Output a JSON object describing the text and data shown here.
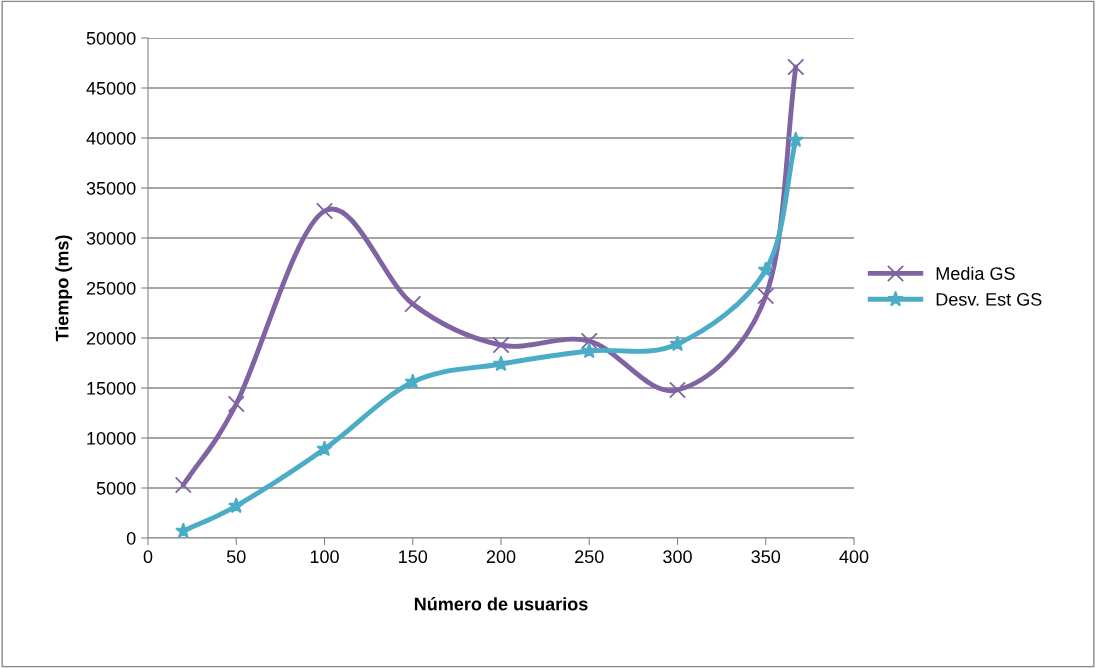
{
  "chart_data": {
    "type": "line",
    "xlabel": "Número de usuarios",
    "ylabel": "Tiempo (ms)",
    "x": [
      20,
      50,
      100,
      150,
      200,
      250,
      300,
      350,
      367
    ],
    "series": [
      {
        "name": "Media GS",
        "color": "#7f63a2",
        "marker": "cross",
        "values": [
          5300,
          13400,
          32700,
          23400,
          19300,
          19700,
          14800,
          24200,
          47100
        ]
      },
      {
        "name": "Desv. Est GS",
        "color": "#4bacc6",
        "marker": "star",
        "values": [
          700,
          3200,
          8900,
          15600,
          17400,
          18700,
          19400,
          26800,
          39800
        ]
      }
    ],
    "xlim": [
      0,
      400
    ],
    "xticks": [
      0,
      50,
      100,
      150,
      200,
      250,
      300,
      350,
      400
    ],
    "ylim": [
      0,
      50000
    ],
    "yticks": [
      0,
      5000,
      10000,
      15000,
      20000,
      25000,
      30000,
      35000,
      40000,
      45000,
      50000
    ],
    "grid": "y",
    "legend": "right",
    "line_style": "solid"
  }
}
